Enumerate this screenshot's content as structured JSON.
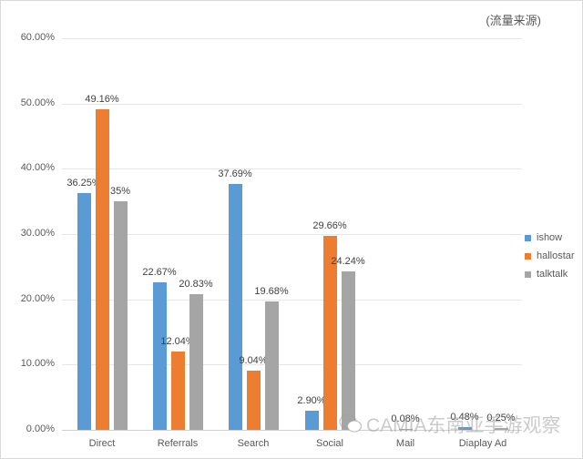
{
  "chart_data": {
    "type": "bar",
    "title": "",
    "subtitle": "(流量来源)",
    "xlabel": "",
    "ylabel": "",
    "ylim": [
      0,
      60
    ],
    "y_ticks": [
      "0.00%",
      "10.00%",
      "20.00%",
      "30.00%",
      "40.00%",
      "50.00%",
      "60.00%"
    ],
    "grid": true,
    "legend_position": "right",
    "categories": [
      "Direct",
      "Referrals",
      "Search",
      "Social",
      "Mail",
      "Diaplay Ad"
    ],
    "series": [
      {
        "name": "ishow",
        "color": "#5b9bd5",
        "values": [
          36.25,
          22.67,
          37.69,
          2.9,
          null,
          0.48
        ],
        "labels": [
          "36.25%",
          "22.67%",
          "37.69%",
          "2.90%",
          "",
          "0.48%"
        ]
      },
      {
        "name": "hallostar",
        "color": "#ed7d31",
        "values": [
          49.16,
          12.04,
          9.04,
          29.66,
          null,
          null
        ],
        "labels": [
          "49.16%",
          "12.04%",
          "9.04%",
          "29.66%",
          "",
          ""
        ]
      },
      {
        "name": "talktalk",
        "color": "#a5a5a5",
        "values": [
          35,
          20.83,
          19.68,
          24.24,
          0.08,
          0.25
        ],
        "labels": [
          "35%",
          "20.83%",
          "19.68%",
          "24.24%",
          "0.08%",
          "0.25%"
        ]
      }
    ]
  },
  "watermark": {
    "text": "CAMIA东南亚手游观察",
    "icon": "wechat-icon"
  }
}
